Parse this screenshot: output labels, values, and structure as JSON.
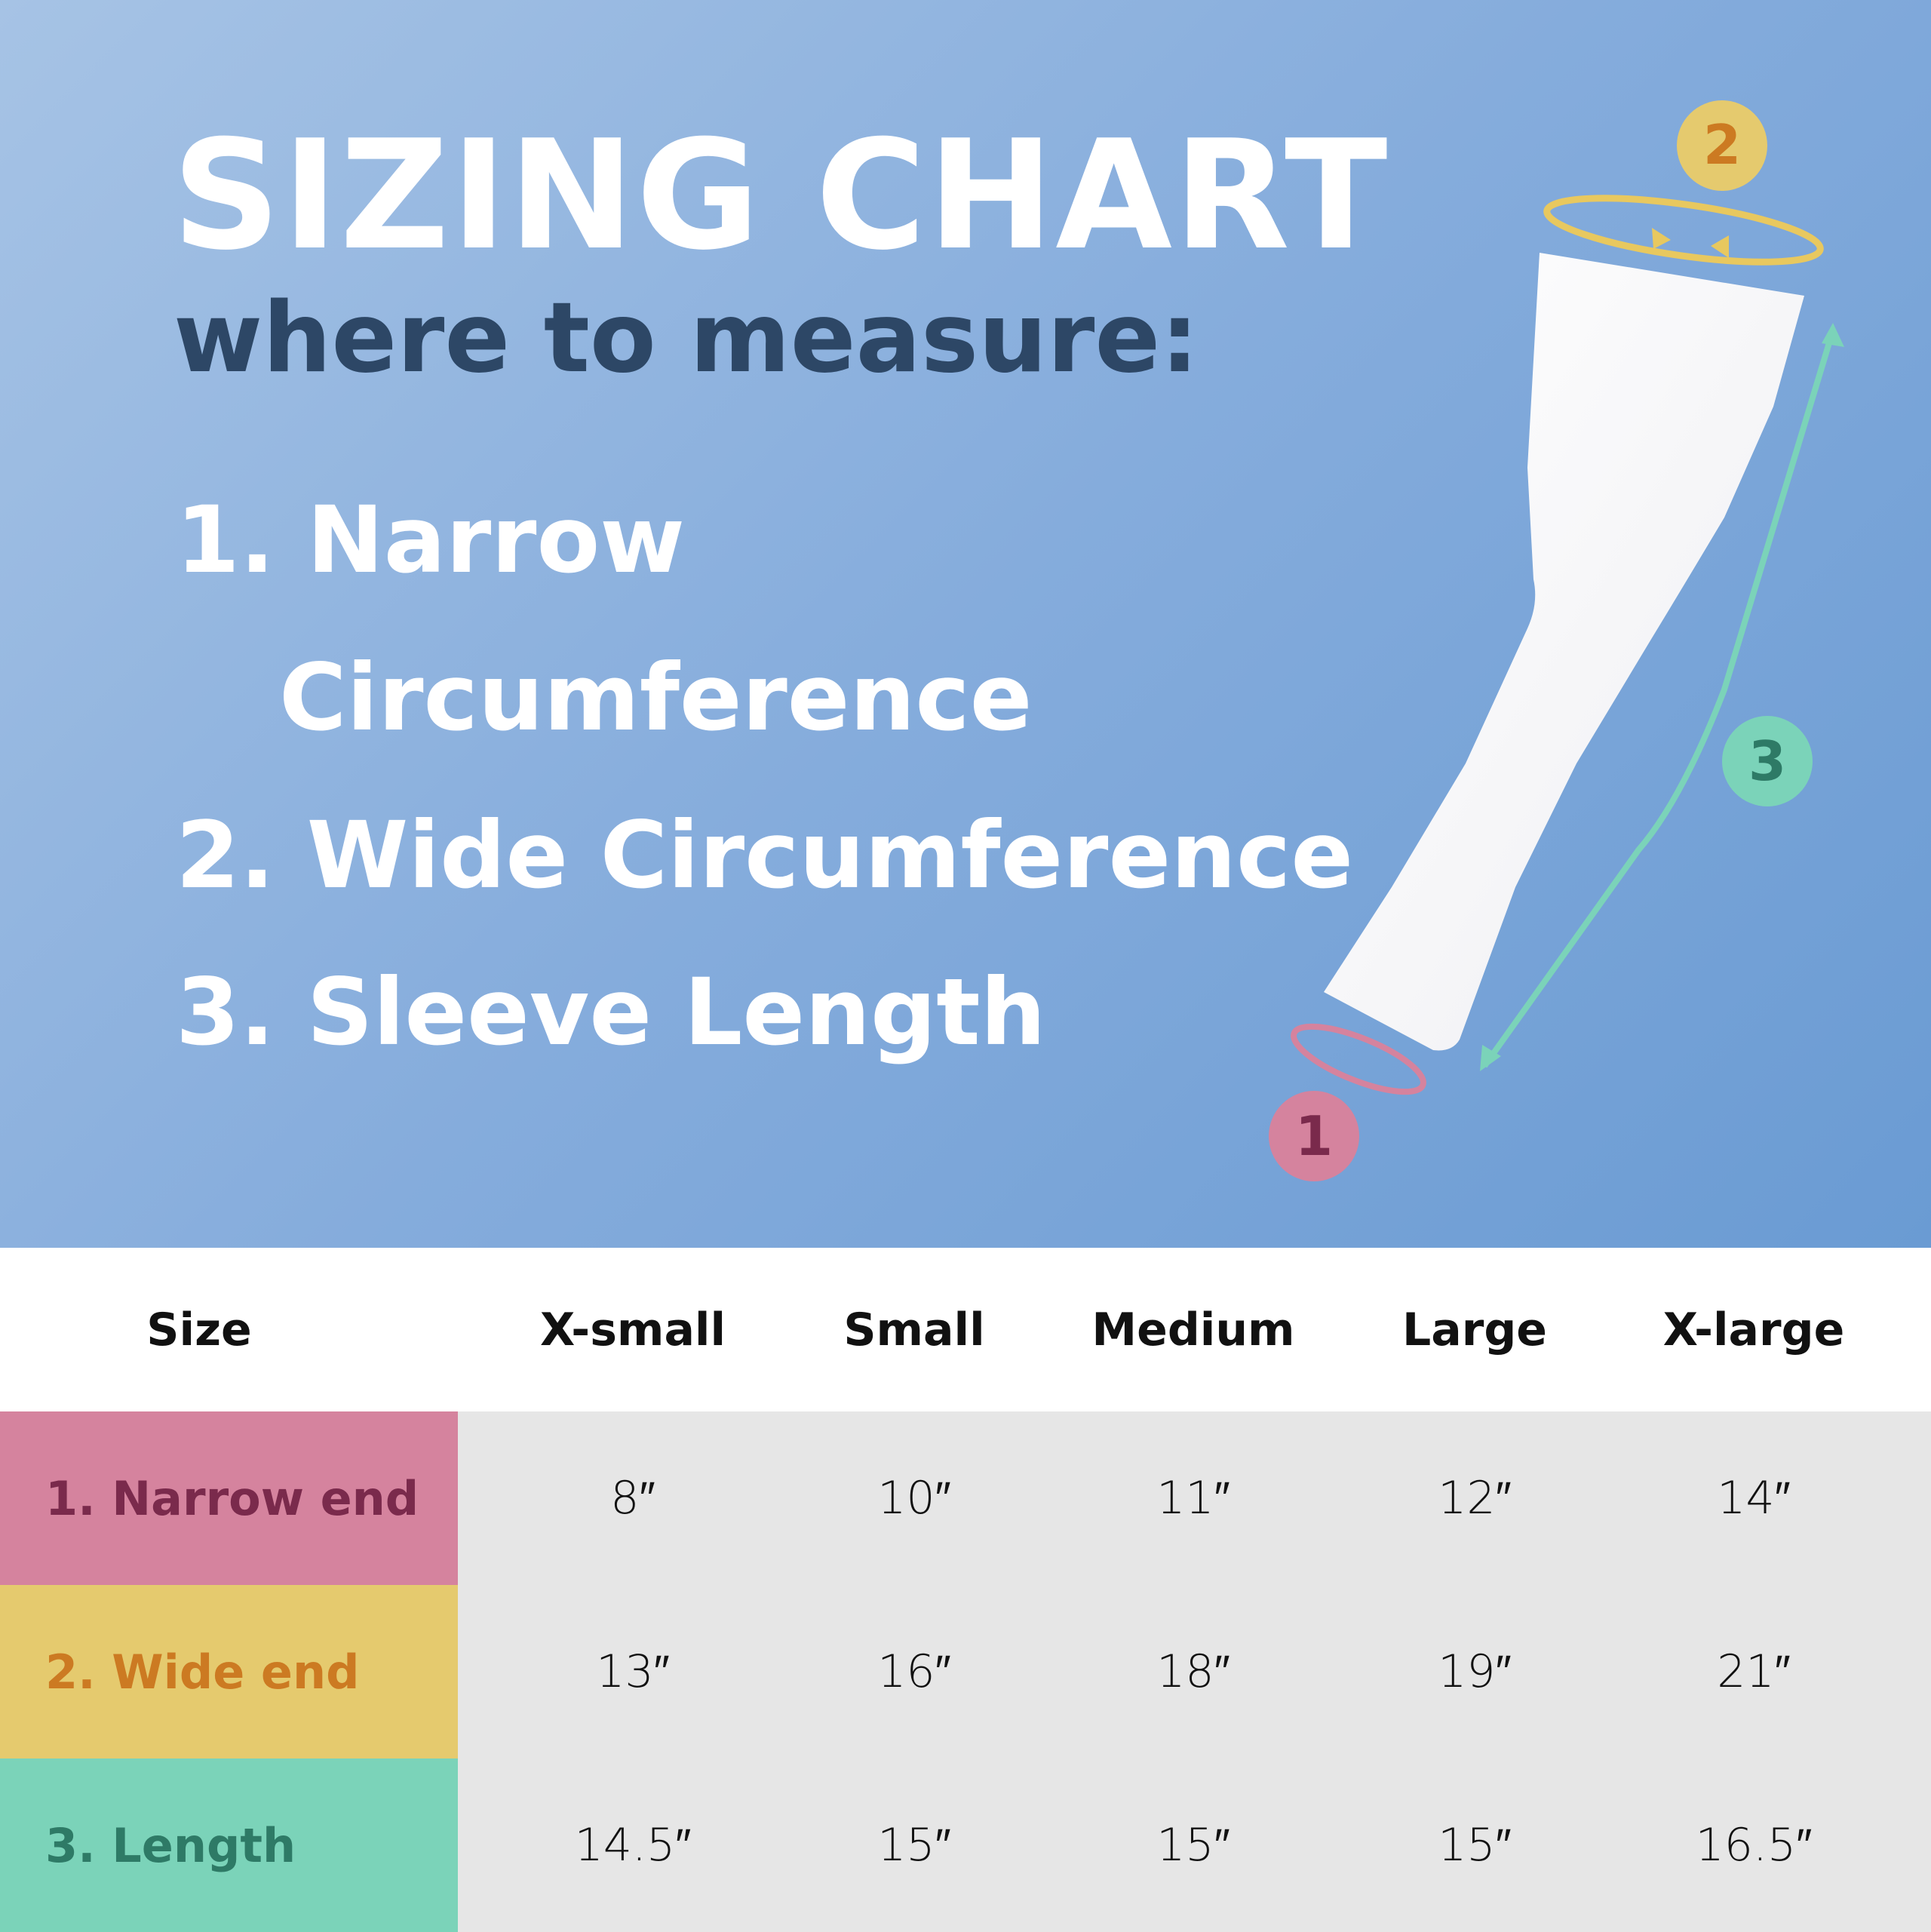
{
  "title": "SIZING CHART",
  "subtitle": "where to measure:",
  "measurements": [
    {
      "line1": "1. Narrow",
      "line2": "Circumference"
    },
    {
      "line1": "2. Wide Circumference"
    },
    {
      "line1": "3. Sleeve Length"
    }
  ],
  "badges": [
    "1",
    "2",
    "3"
  ],
  "colors": {
    "narrow": "#d5839e",
    "narrow_text": "#7a2a4c",
    "wide": "#e5ca6e",
    "wide_text": "#cc7a22",
    "length": "#7bd3b9",
    "length_text": "#2e7a66",
    "title_dark": "#2d4766"
  },
  "table": {
    "header": [
      "Size",
      "X-small",
      "Small",
      "Medium",
      "Large",
      "X-large"
    ],
    "rows": [
      {
        "label": "1. Narrow end",
        "values": [
          "8″",
          "10″",
          "11″",
          "12″",
          "14″"
        ]
      },
      {
        "label": "2. Wide end",
        "values": [
          "13″",
          "16″",
          "18″",
          "19″",
          "21″"
        ]
      },
      {
        "label": "3. Length",
        "values": [
          "14.5″",
          "15″",
          "15″",
          "15″",
          "16.5″"
        ]
      }
    ]
  }
}
